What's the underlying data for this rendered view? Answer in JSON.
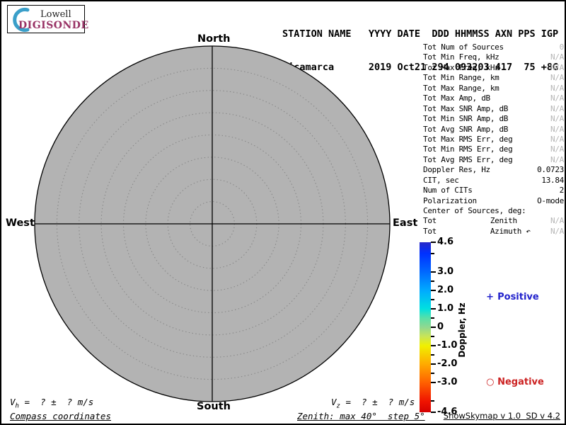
{
  "logo": {
    "line1": "Lowell",
    "line2": "DIGISONDE",
    "crescent_color": "#3a9fc9",
    "brand_color": "#993366"
  },
  "header": {
    "line1": "STATION NAME   YYYY DATE  DDD HHMMSS AXN PPS IGP",
    "line2": "Jicamarca      2019 Oct21 294 093203 417  75 +8G",
    "station_name": "Jicamarca",
    "year": "2019",
    "date": "Oct21",
    "ddd": "294",
    "hhmmss": "093203",
    "axn": "417",
    "pps": "75",
    "igp": "+8G"
  },
  "compass": {
    "north": "North",
    "south": "South",
    "east": "East",
    "west": "West"
  },
  "info_table": {
    "muted_color": "#b5b5b5",
    "rows": [
      {
        "label": "Tot Num of Sources",
        "value": "0",
        "muted": true
      },
      {
        "label": "Tot Min Freq, kHz",
        "value": "N/A",
        "muted": true
      },
      {
        "label": "Tot Max Freq, kHz",
        "value": "N/A",
        "muted": true
      },
      {
        "label": "Tot Min Range, km",
        "value": "N/A",
        "muted": true
      },
      {
        "label": "Tot Max Range, km",
        "value": "N/A",
        "muted": true
      },
      {
        "label": "Tot Max Amp, dB",
        "value": "N/A",
        "muted": true
      },
      {
        "label": "Tot Max SNR Amp, dB",
        "value": "N/A",
        "muted": true
      },
      {
        "label": "Tot Min SNR Amp, dB",
        "value": "N/A",
        "muted": true
      },
      {
        "label": "Tot Avg SNR Amp, dB",
        "value": "N/A",
        "muted": true
      },
      {
        "label": "Tot Max RMS Err, deg",
        "value": "N/A",
        "muted": true
      },
      {
        "label": "Tot Min RMS Err, deg",
        "value": "N/A",
        "muted": true
      },
      {
        "label": "Tot Avg RMS Err, deg",
        "value": "N/A",
        "muted": true
      },
      {
        "label": "Doppler Res, Hz",
        "value": "0.0723",
        "muted": false
      },
      {
        "label": "CIT, sec",
        "value": "13.84",
        "muted": false
      },
      {
        "label": "Num of CITs",
        "value": "2",
        "muted": false
      },
      {
        "label": "Polarization",
        "value": "O-mode",
        "muted": false
      },
      {
        "label": "Center of Sources, deg:",
        "value": "",
        "muted": false
      },
      {
        "label": "Tot            Zenith",
        "value": "N/A",
        "muted": true
      },
      {
        "label": "Tot            Azimuth ↶",
        "value": "N/A",
        "muted": true
      }
    ]
  },
  "colorbar": {
    "title": "Doppler, Hz",
    "range": [
      -4.6,
      4.6
    ],
    "major_ticks": [
      {
        "value": 4.6,
        "label": "4.6"
      },
      {
        "value": 3.0,
        "label": "3.0"
      },
      {
        "value": 2.0,
        "label": "2.0"
      },
      {
        "value": 1.0,
        "label": "1.0"
      },
      {
        "value": 0.0,
        "label": "0"
      },
      {
        "value": -1.0,
        "label": "-1.0"
      },
      {
        "value": -2.0,
        "label": "-2.0"
      },
      {
        "value": -3.0,
        "label": "-3.0"
      },
      {
        "value": -4.6,
        "label": "-4.6"
      }
    ],
    "minor_ticks": [
      4.0,
      2.5,
      1.5,
      0.5,
      -0.5,
      -1.5,
      -2.5,
      -4.0
    ],
    "gradient_stops": [
      {
        "pct": 0,
        "color": "#2828c8"
      },
      {
        "pct": 6.5,
        "color": "#0030ff"
      },
      {
        "pct": 17.4,
        "color": "#0068ff"
      },
      {
        "pct": 28.3,
        "color": "#00aaff"
      },
      {
        "pct": 39.1,
        "color": "#00e0e0"
      },
      {
        "pct": 44.6,
        "color": "#58e0a8"
      },
      {
        "pct": 50,
        "color": "#90d890"
      },
      {
        "pct": 55.4,
        "color": "#c8e458"
      },
      {
        "pct": 60.9,
        "color": "#f0f000"
      },
      {
        "pct": 71.7,
        "color": "#ffaa00"
      },
      {
        "pct": 82.6,
        "color": "#ff6000"
      },
      {
        "pct": 93.5,
        "color": "#f01400"
      },
      {
        "pct": 100,
        "color": "#d40000"
      }
    ]
  },
  "legend": {
    "positive_symbol": "+",
    "positive_label": "Positive",
    "positive_color": "#2222cc",
    "negative_symbol": "○",
    "negative_label": "Negative",
    "negative_color": "#cc2222"
  },
  "footer": {
    "vh_var": "V",
    "vh_sub": "h",
    "vh_rest": " =  ? ±  ? m/s",
    "vz_var": "V",
    "vz_sub": "z",
    "vz_rest": " =  ? ±  ? m/s",
    "coords_note": "Compass coordinates",
    "zenith_note": "Zenith: max 40°  step 5°",
    "credit": "ShowSkymap v 1.0  SD v 4.2"
  },
  "chart_data": {
    "type": "polar-skymap",
    "coordinate_system": "Compass coordinates",
    "compass_labels": [
      "North",
      "East",
      "South",
      "West"
    ],
    "zenith_max_deg": 40,
    "zenith_step_deg": 5,
    "rings_deg": [
      5,
      10,
      15,
      20,
      25,
      30,
      35,
      40
    ],
    "num_sources": 0,
    "points": [],
    "doppler_res_hz": 0.0723,
    "cit_sec": 13.84,
    "num_cits": 2,
    "polarization": "O-mode",
    "colorbar": {
      "label": "Doppler, Hz",
      "min": -4.6,
      "max": 4.6,
      "major_tick_values": [
        4.6,
        3.0,
        2.0,
        1.0,
        0,
        -1.0,
        -2.0,
        -3.0,
        -4.6
      ]
    },
    "disk_fill_color": "#b3b3b3",
    "legend_position": "right"
  }
}
